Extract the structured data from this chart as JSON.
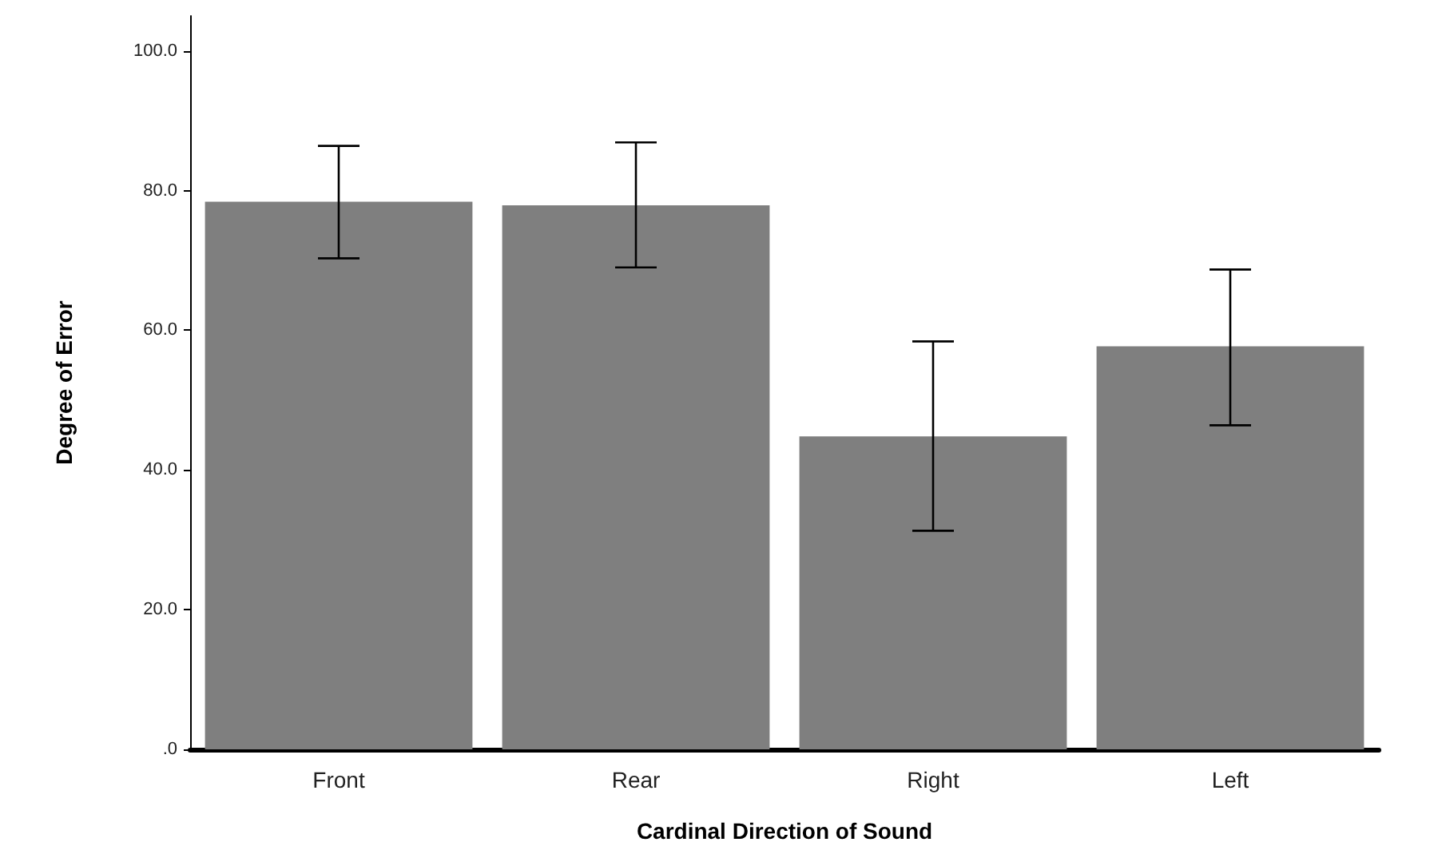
{
  "chart_data": {
    "type": "bar",
    "xlabel": "Cardinal Direction of Sound",
    "ylabel": "Degree of Error",
    "categories": [
      "Front",
      "Rear",
      "Right",
      "Left"
    ],
    "values": [
      78.4,
      77.9,
      44.8,
      57.7
    ],
    "errors": [
      [
        70.3,
        86.4
      ],
      [
        69.0,
        86.9
      ],
      [
        31.3,
        58.4
      ],
      [
        46.4,
        68.7
      ]
    ],
    "color": "#7f7f7f",
    "ylim": [
      0,
      105
    ],
    "yticks": [
      {
        "value": 0,
        "label": ".0"
      },
      {
        "value": 20,
        "label": "20.0"
      },
      {
        "value": 40,
        "label": "40.0"
      },
      {
        "value": 60,
        "label": "60.0"
      },
      {
        "value": 80,
        "label": "80.0"
      },
      {
        "value": 100,
        "label": "100.0"
      }
    ],
    "grid": false
  }
}
